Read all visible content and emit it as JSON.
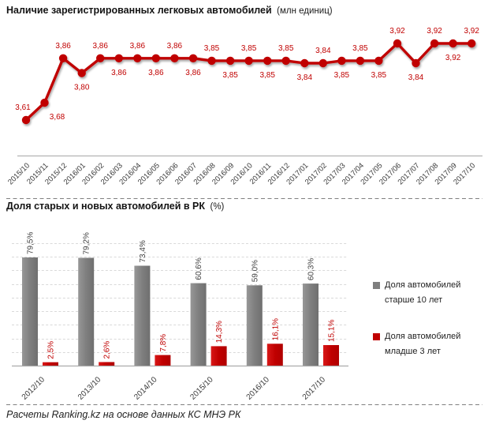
{
  "page": {
    "footer": "Расчеты Ranking.kz на основе данных КС МНЭ РК"
  },
  "chart_data": [
    {
      "type": "line",
      "title": "Наличие зарегистрированных легковых автомобилей",
      "title_suffix": "(млн единиц)",
      "line_color": "#C00000",
      "axis_color": "#A6A6A6",
      "tick_color": "#3a3a3a",
      "grid": false,
      "ylim": [
        3.55,
        3.95
      ],
      "x": [
        "2015/10",
        "2015/11",
        "2015/12",
        "2016/01",
        "2016/02",
        "2016/03",
        "2016/04",
        "2016/05",
        "2016/06",
        "2016/07",
        "2016/08",
        "2016/09",
        "2016/10",
        "2016/11",
        "2016/12",
        "2017/01",
        "2017/02",
        "2017/03",
        "2017/04",
        "2017/05",
        "2017/06",
        "2017/07",
        "2017/08",
        "2017/09",
        "2017/10"
      ],
      "values": [
        3.61,
        3.68,
        3.86,
        3.8,
        3.86,
        3.86,
        3.86,
        3.86,
        3.86,
        3.86,
        3.85,
        3.85,
        3.85,
        3.85,
        3.85,
        3.84,
        3.84,
        3.85,
        3.85,
        3.85,
        3.92,
        3.84,
        3.92,
        3.92,
        3.92
      ],
      "labels": [
        "3,61",
        "3,68",
        "3,86",
        "3,80",
        "3,86",
        "3,86",
        "3,86",
        "3,86",
        "3,86",
        "3,86",
        "3,85",
        "3,85",
        "3,85",
        "3,85",
        "3,85",
        "3,84",
        "3,84",
        "3,85",
        "3,85",
        "3,85",
        "3,92",
        "3,84",
        "3,92",
        "3,92",
        "3,92"
      ]
    },
    {
      "type": "bar",
      "title": "Доля старых и новых автомобилей в РК",
      "title_suffix": "(%)",
      "axis_color": "#ABABAB",
      "grid_color": "#D9D9D9",
      "tick_color": "#3a3a3a",
      "grid": true,
      "ylim": [
        0,
        90
      ],
      "gridline_step": 10,
      "legend_position": "right",
      "categories": [
        "2012/10",
        "2013/10",
        "2014/10",
        "2015/10",
        "2016/10",
        "2017/10"
      ],
      "series": [
        {
          "name": "Доля автомобилей старше 10 лет",
          "color": "#7F7F7F",
          "label_color": "#404040",
          "values": [
            79.5,
            79.2,
            73.4,
            60.6,
            59.0,
            60.3
          ],
          "labels": [
            "79,5%",
            "79,2%",
            "73,4%",
            "60,6%",
            "59,0%",
            "60,3%"
          ]
        },
        {
          "name": "Доля автомобилей младше 3 лет",
          "color": "#C00000",
          "label_color": "#C00000",
          "values": [
            2.5,
            2.6,
            7.8,
            14.3,
            16.1,
            15.1
          ],
          "labels": [
            "2,5%",
            "2,6%",
            "7,8%",
            "14,3%",
            "16,1%",
            "15,1%"
          ]
        }
      ]
    }
  ]
}
